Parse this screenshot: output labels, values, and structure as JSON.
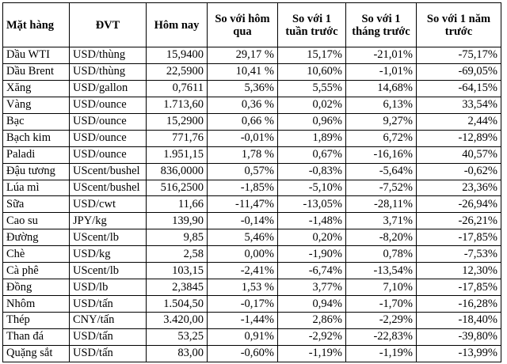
{
  "table": {
    "headers": [
      "Mặt hàng",
      "ĐVT",
      "Hôm nay",
      "So với hôm qua",
      "So với 1 tuần trước",
      "So với 1 tháng trước",
      "So với 1 năm trước"
    ],
    "rows": [
      {
        "name": "Dầu WTI",
        "unit": "USD/thùng",
        "today": "15,9400",
        "vs_yesterday": "29,17 %",
        "vs_week": "15,17%",
        "vs_month": "-21,01%",
        "vs_year": "-75,17%"
      },
      {
        "name": "Dầu Brent",
        "unit": "USD/thùng",
        "today": "22,5900",
        "vs_yesterday": "10,41 %",
        "vs_week": "10,60%",
        "vs_month": "-1,01%",
        "vs_year": "-69,05%"
      },
      {
        "name": "Xăng",
        "unit": "USD/gallon",
        "today": "0,7611",
        "vs_yesterday": "5,36%",
        "vs_week": "5,55%",
        "vs_month": "14,68%",
        "vs_year": "-64,15%"
      },
      {
        "name": "Vàng",
        "unit": "USD/ounce",
        "today": "1.713,60",
        "vs_yesterday": "0,36 %",
        "vs_week": "0,02%",
        "vs_month": "6,13%",
        "vs_year": "33,54%"
      },
      {
        "name": "Bạc",
        "unit": "USD/ounce",
        "today": "15,2900",
        "vs_yesterday": "0,66 %",
        "vs_week": "0,96%",
        "vs_month": "9,27%",
        "vs_year": "2,44%"
      },
      {
        "name": "Bạch kim",
        "unit": "USD/ounce",
        "today": "771,76",
        "vs_yesterday": "-0,01%",
        "vs_week": "1,89%",
        "vs_month": "6,72%",
        "vs_year": "-12,89%"
      },
      {
        "name": "Paladi",
        "unit": "USD/ounce",
        "today": "1.951,15",
        "vs_yesterday": "1,78 %",
        "vs_week": "0,67%",
        "vs_month": "-16,16%",
        "vs_year": "40,57%"
      },
      {
        "name": "Đậu tương",
        "unit": "UScent/bushel",
        "today": "836,0000",
        "vs_yesterday": "0,57%",
        "vs_week": "-0,83%",
        "vs_month": "-5,64%",
        "vs_year": "-0,62%"
      },
      {
        "name": "Lúa mì",
        "unit": "UScent/bushel",
        "today": "516,2500",
        "vs_yesterday": "-1,85%",
        "vs_week": "-5,10%",
        "vs_month": "-7,52%",
        "vs_year": "23,36%"
      },
      {
        "name": "Sữa",
        "unit": "USD/cwt",
        "today": "11,66",
        "vs_yesterday": "-11,47%",
        "vs_week": "-13,05%",
        "vs_month": "-28,11%",
        "vs_year": "-26,94%"
      },
      {
        "name": "Cao su",
        "unit": "JPY/kg",
        "today": "139,90",
        "vs_yesterday": "-0,14%",
        "vs_week": "-1,48%",
        "vs_month": "3,71%",
        "vs_year": "-26,21%"
      },
      {
        "name": "Đường",
        "unit": "UScent/lb",
        "today": "9,85",
        "vs_yesterday": "5,46%",
        "vs_week": "0,20%",
        "vs_month": "-8,20%",
        "vs_year": "-17,85%"
      },
      {
        "name": "Chè",
        "unit": "USD/kg",
        "today": "2,58",
        "vs_yesterday": "0,00%",
        "vs_week": "-1,90%",
        "vs_month": "0,78%",
        "vs_year": "-7,53%"
      },
      {
        "name": "Cà phê",
        "unit": "UScent/lb",
        "today": "103,15",
        "vs_yesterday": "-2,41%",
        "vs_week": "-6,74%",
        "vs_month": "-13,54%",
        "vs_year": "12,30%"
      },
      {
        "name": "Đồng",
        "unit": "USD/lb",
        "today": "2,3845",
        "vs_yesterday": "1,53 %",
        "vs_week": "3,77%",
        "vs_month": "7,10%",
        "vs_year": "-17,85%"
      },
      {
        "name": "Nhôm",
        "unit": "USD/tấn",
        "today": "1.504,50",
        "vs_yesterday": "-0,17%",
        "vs_week": "0,94%",
        "vs_month": "-1,70%",
        "vs_year": "-16,28%"
      },
      {
        "name": "Thép",
        "unit": "CNY/tấn",
        "today": "3.420,00",
        "vs_yesterday": "-1,44%",
        "vs_week": "2,86%",
        "vs_month": "-2,29%",
        "vs_year": "-18,40%"
      },
      {
        "name": "Than đá",
        "unit": "USD/tấn",
        "today": "53,25",
        "vs_yesterday": "0,91%",
        "vs_week": "-2,92%",
        "vs_month": "-22,83%",
        "vs_year": "-39,80%"
      },
      {
        "name": "Quặng sắt",
        "unit": "USD/tấn",
        "today": "83,00",
        "vs_yesterday": "-0,60%",
        "vs_week": "-1,19%",
        "vs_month": "-1,19%",
        "vs_year": "-13,99%"
      }
    ]
  }
}
